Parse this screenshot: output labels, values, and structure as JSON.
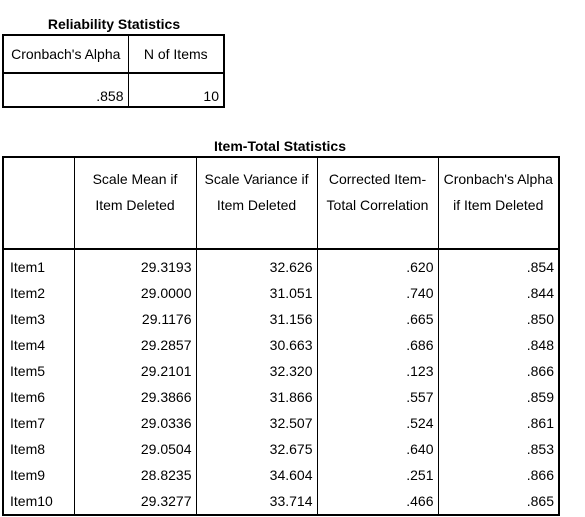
{
  "reliability": {
    "caption": "Reliability Statistics",
    "headers": [
      "Cronbach's Alpha",
      "N of Items"
    ],
    "values": [
      ".858",
      "10"
    ]
  },
  "item_total": {
    "caption": "Item-Total Statistics",
    "headers": [
      "",
      "Scale Mean if Item Deleted",
      "Scale Variance if Item Deleted",
      "Corrected Item-Total Correlation",
      "Cronbach's Alpha if Item Deleted"
    ],
    "rows": [
      [
        "Item1",
        "29.3193",
        "32.626",
        ".620",
        ".854"
      ],
      [
        "Item2",
        "29.0000",
        "31.051",
        ".740",
        ".844"
      ],
      [
        "Item3",
        "29.1176",
        "31.156",
        ".665",
        ".850"
      ],
      [
        "Item4",
        "29.2857",
        "30.663",
        ".686",
        ".848"
      ],
      [
        "Item5",
        "29.2101",
        "32.320",
        ".123",
        ".866"
      ],
      [
        "Item6",
        "29.3866",
        "31.866",
        ".557",
        ".859"
      ],
      [
        "Item7",
        "29.0336",
        "32.507",
        ".524",
        ".861"
      ],
      [
        "Item8",
        "29.0504",
        "32.675",
        ".640",
        ".853"
      ],
      [
        "Item9",
        "28.8235",
        "34.604",
        ".251",
        ".866"
      ],
      [
        "Item10",
        "29.3277",
        "33.714",
        ".466",
        ".865"
      ]
    ]
  }
}
